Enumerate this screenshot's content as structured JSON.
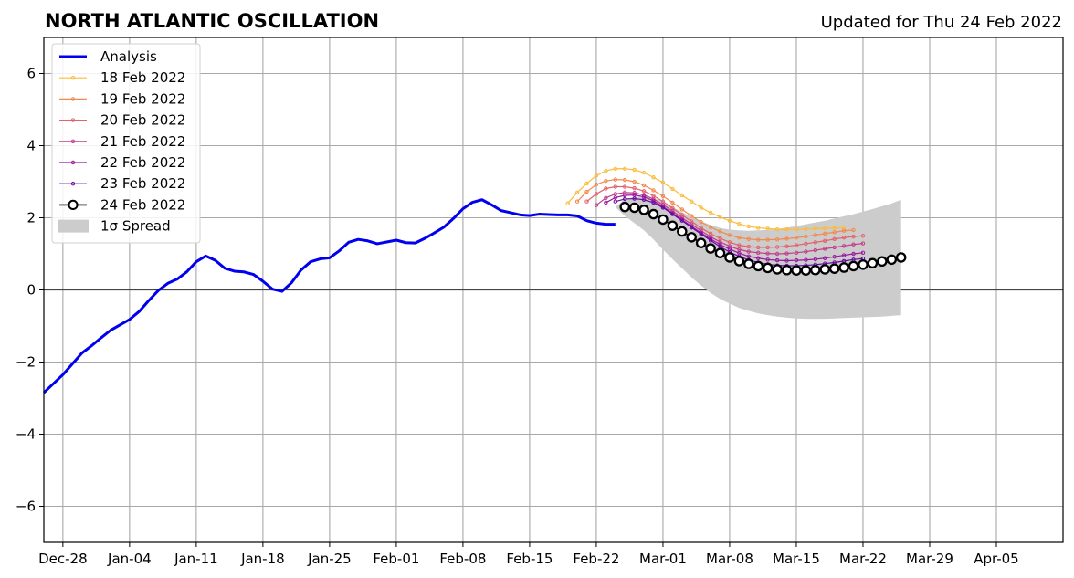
{
  "chart_data": {
    "type": "line",
    "title": "NORTH ATLANTIC OSCILLATION",
    "subtitle": "Updated for Thu 24 Feb 2022",
    "ylim": [
      -7,
      7
    ],
    "yticks": [
      6,
      4,
      2,
      0,
      -2,
      -4,
      -6
    ],
    "ytick_labels": [
      "6",
      "4",
      "2",
      "0",
      "−2",
      "−4",
      "−6"
    ],
    "xlim_days": [
      -5,
      102
    ],
    "xticks": [
      -3,
      4,
      11,
      18,
      25,
      32,
      39,
      46,
      53,
      60,
      67,
      74,
      81,
      88,
      95
    ],
    "xtick_labels": [
      "Dec-28",
      "Jan-04",
      "Jan-11",
      "Jan-18",
      "Jan-25",
      "Feb-01",
      "Feb-08",
      "Feb-15",
      "Feb-22",
      "Mar-01",
      "Mar-08",
      "Mar-15",
      "Mar-22",
      "Mar-29",
      "Apr-05"
    ],
    "grid": true,
    "legend_position": "top-left",
    "analysis": {
      "name": "Analysis",
      "color": "#0000ee",
      "start": "Dec-26",
      "values": [
        -2.85,
        -2.6,
        -2.35,
        -2.05,
        -1.75,
        -1.55,
        -1.33,
        -1.12,
        -0.97,
        -0.82,
        -0.6,
        -0.3,
        -0.02,
        0.18,
        0.3,
        0.5,
        0.78,
        0.94,
        0.82,
        0.6,
        0.52,
        0.5,
        0.43,
        0.24,
        0.02,
        -0.04,
        0.2,
        0.55,
        0.78,
        0.86,
        0.89,
        1.08,
        1.32,
        1.4,
        1.36,
        1.28,
        1.33,
        1.38,
        1.31,
        1.3,
        1.43,
        1.58,
        1.74,
        1.98,
        2.25,
        2.43,
        2.5,
        2.36,
        2.2,
        2.14,
        2.08,
        2.06,
        2.1,
        2.09,
        2.08,
        2.08,
        2.05,
        1.92,
        1.85,
        1.82,
        1.82
      ]
    },
    "forecasts": [
      {
        "name": "18 Feb 2022",
        "color": "#fbbc3a",
        "start": "Feb-19",
        "marker": "small",
        "values": [
          2.4,
          2.7,
          2.95,
          3.17,
          3.3,
          3.36,
          3.36,
          3.33,
          3.25,
          3.12,
          2.98,
          2.8,
          2.62,
          2.45,
          2.28,
          2.14,
          2.02,
          1.92,
          1.83,
          1.76,
          1.72,
          1.7,
          1.68,
          1.68,
          1.68,
          1.69,
          1.7,
          1.71,
          1.72,
          1.72
        ]
      },
      {
        "name": "19 Feb 2022",
        "color": "#f28a4c",
        "start": "Feb-20",
        "marker": "small",
        "values": [
          2.45,
          2.72,
          2.92,
          3.02,
          3.06,
          3.05,
          3.0,
          2.9,
          2.76,
          2.6,
          2.42,
          2.23,
          2.05,
          1.88,
          1.74,
          1.62,
          1.52,
          1.45,
          1.41,
          1.39,
          1.39,
          1.4,
          1.42,
          1.45,
          1.48,
          1.52,
          1.56,
          1.6,
          1.64,
          1.66
        ]
      },
      {
        "name": "20 Feb 2022",
        "color": "#e3626b",
        "start": "Feb-21",
        "marker": "small",
        "values": [
          2.45,
          2.66,
          2.81,
          2.86,
          2.86,
          2.82,
          2.74,
          2.61,
          2.45,
          2.27,
          2.08,
          1.9,
          1.72,
          1.56,
          1.43,
          1.32,
          1.24,
          1.2,
          1.18,
          1.18,
          1.19,
          1.21,
          1.24,
          1.28,
          1.32,
          1.36,
          1.41,
          1.45,
          1.48,
          1.5
        ]
      },
      {
        "name": "21 Feb 2022",
        "color": "#c33d8b",
        "start": "Feb-22",
        "marker": "small",
        "values": [
          2.35,
          2.55,
          2.66,
          2.7,
          2.69,
          2.63,
          2.52,
          2.36,
          2.19,
          2.0,
          1.82,
          1.64,
          1.47,
          1.33,
          1.21,
          1.12,
          1.06,
          1.03,
          1.01,
          1.0,
          1.01,
          1.03,
          1.06,
          1.1,
          1.14,
          1.18,
          1.22,
          1.26,
          1.29
        ]
      },
      {
        "name": "22 Feb 2022",
        "color": "#9b179e",
        "start": "Feb-23",
        "marker": "small",
        "values": [
          2.42,
          2.56,
          2.62,
          2.63,
          2.58,
          2.47,
          2.31,
          2.13,
          1.95,
          1.76,
          1.58,
          1.41,
          1.26,
          1.13,
          1.02,
          0.93,
          0.88,
          0.84,
          0.82,
          0.81,
          0.82,
          0.83,
          0.85,
          0.88,
          0.92,
          0.96,
          1.0,
          1.03
        ]
      },
      {
        "name": "23 Feb 2022",
        "color": "#6a0aa5",
        "start": "Feb-24",
        "marker": "small",
        "values": [
          2.45,
          2.52,
          2.53,
          2.5,
          2.42,
          2.28,
          2.1,
          1.92,
          1.73,
          1.55,
          1.37,
          1.2,
          1.05,
          0.93,
          0.83,
          0.76,
          0.71,
          0.68,
          0.67,
          0.67,
          0.68,
          0.7,
          0.73,
          0.76,
          0.8,
          0.84,
          0.87
        ]
      },
      {
        "name": "24 Feb 2022",
        "color": "#000000",
        "start": "Feb-25",
        "marker": "large",
        "values": [
          2.3,
          2.28,
          2.22,
          2.1,
          1.95,
          1.78,
          1.62,
          1.46,
          1.3,
          1.15,
          1.02,
          0.9,
          0.8,
          0.72,
          0.66,
          0.61,
          0.57,
          0.55,
          0.54,
          0.54,
          0.55,
          0.57,
          0.59,
          0.62,
          0.66,
          0.7,
          0.74,
          0.79,
          0.84,
          0.9
        ]
      }
    ],
    "spread": {
      "name": "1σ Spread",
      "color": "#cccccc",
      "start": "Feb-24",
      "lower": [
        2.3,
        2.05,
        1.85,
        1.65,
        1.4,
        1.12,
        0.85,
        0.6,
        0.35,
        0.12,
        -0.08,
        -0.25,
        -0.38,
        -0.5,
        -0.58,
        -0.65,
        -0.7,
        -0.74,
        -0.77,
        -0.79,
        -0.8,
        -0.8,
        -0.8,
        -0.79,
        -0.78,
        -0.77,
        -0.76,
        -0.75,
        -0.74,
        -0.72,
        -0.7
      ],
      "upper": [
        2.3,
        2.52,
        2.58,
        2.6,
        2.55,
        2.45,
        2.3,
        2.16,
        2.02,
        1.9,
        1.8,
        1.72,
        1.67,
        1.65,
        1.64,
        1.65,
        1.66,
        1.69,
        1.73,
        1.77,
        1.82,
        1.87,
        1.92,
        1.98,
        2.04,
        2.1,
        2.17,
        2.24,
        2.32,
        2.4,
        2.5
      ]
    }
  }
}
